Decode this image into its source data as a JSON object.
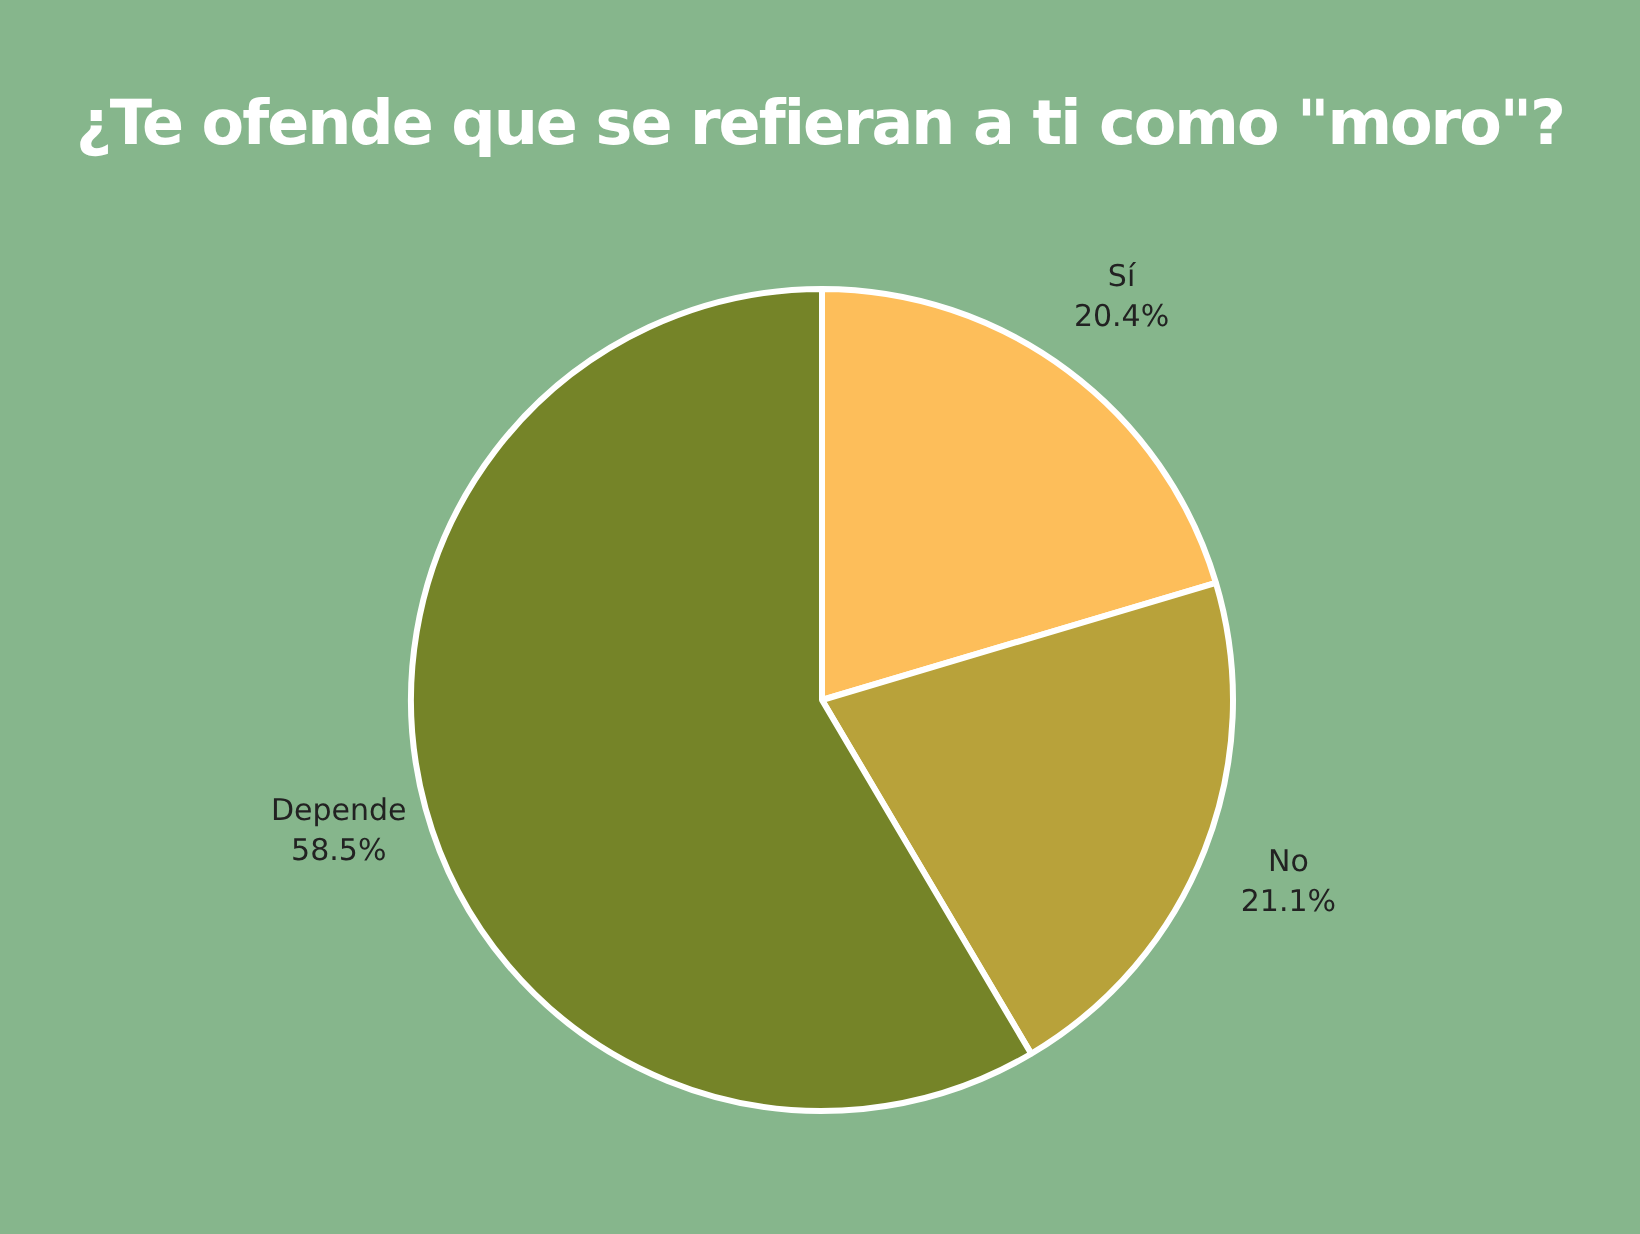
{
  "chart_data": {
    "type": "pie",
    "title": "¿Te ofende que se refieran a ti  como \"moro\"?",
    "categories": [
      "Sí",
      "No",
      "Depende"
    ],
    "values": [
      20.4,
      21.1,
      58.5
    ],
    "colors": [
      "#fdbe5a",
      "#b8a23a",
      "#758428"
    ],
    "value_labels": [
      "20.4%",
      "21.1%",
      "58.5%"
    ],
    "legend": false
  }
}
